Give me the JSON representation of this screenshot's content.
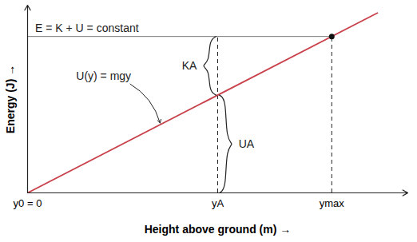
{
  "chart_data": {
    "type": "line",
    "x_label": "Height above ground (m)",
    "y_label": "Energy (J)",
    "xlim": [
      0,
      12.5
    ],
    "ylim": [
      0,
      12
    ],
    "xticks": [
      {
        "value": 0,
        "label": "y0 = 0"
      },
      {
        "value": 6.25,
        "label": "yA"
      },
      {
        "value": 10,
        "label": "ymax"
      }
    ],
    "yticks": [],
    "tick_labels": "x",
    "series": [
      {
        "name": "U(y) = mgy",
        "color": "#c8414b",
        "line_style": "solid",
        "x": [
          0,
          11.5
        ],
        "values": [
          0,
          11.5
        ]
      },
      {
        "name": "E = K + U = constant",
        "color": "#777777",
        "line_style": "solid",
        "x": [
          0,
          10
        ],
        "values": [
          10,
          10
        ]
      }
    ],
    "braces": [
      {
        "label": "KA",
        "from": 6.25,
        "to": 10
      },
      {
        "label": "UA",
        "from": 0,
        "to": 6.25
      }
    ]
  }
}
